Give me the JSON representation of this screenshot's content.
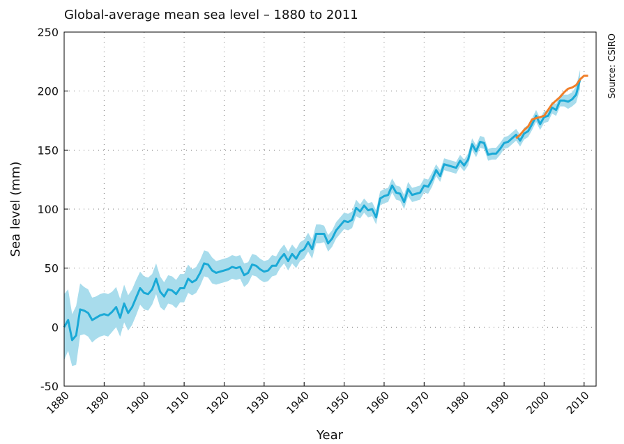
{
  "chart_data": {
    "type": "line",
    "title": "Global-average mean sea level – 1880 to 2011",
    "source": "Source: CSIRO",
    "x_label": "Year",
    "y_label": "Sea level (mm)",
    "xlim": [
      1880,
      2013
    ],
    "ylim": [
      -50,
      250
    ],
    "xticks": [
      1880,
      1890,
      1900,
      1910,
      1920,
      1930,
      1940,
      1950,
      1960,
      1970,
      1980,
      1990,
      2000,
      2010
    ],
    "yticks": [
      -50,
      0,
      50,
      100,
      150,
      200,
      250
    ],
    "grid": true,
    "series": [
      {
        "color": "#1aa9d6",
        "band_color": "#a8dcec",
        "x": [
          1880,
          1881,
          1882,
          1883,
          1884,
          1885,
          1886,
          1887,
          1888,
          1889,
          1890,
          1891,
          1892,
          1893,
          1894,
          1895,
          1896,
          1897,
          1898,
          1899,
          1900,
          1901,
          1902,
          1903,
          1904,
          1905,
          1906,
          1907,
          1908,
          1909,
          1910,
          1911,
          1912,
          1913,
          1914,
          1915,
          1916,
          1917,
          1918,
          1919,
          1920,
          1921,
          1922,
          1923,
          1924,
          1925,
          1926,
          1927,
          1928,
          1929,
          1930,
          1931,
          1932,
          1933,
          1934,
          1935,
          1936,
          1937,
          1938,
          1939,
          1940,
          1941,
          1942,
          1943,
          1944,
          1945,
          1946,
          1947,
          1948,
          1949,
          1950,
          1951,
          1952,
          1953,
          1954,
          1955,
          1956,
          1957,
          1958,
          1959,
          1960,
          1961,
          1962,
          1963,
          1964,
          1965,
          1966,
          1967,
          1968,
          1969,
          1970,
          1971,
          1972,
          1973,
          1974,
          1975,
          1976,
          1977,
          1978,
          1979,
          1980,
          1981,
          1982,
          1983,
          1984,
          1985,
          1986,
          1987,
          1988,
          1989,
          1990,
          1991,
          1992,
          1993,
          1994,
          1995,
          1996,
          1997,
          1998,
          1999,
          2000,
          2001,
          2002,
          2003,
          2004,
          2005,
          2006,
          2007,
          2008,
          2009
        ],
        "values": [
          0,
          6,
          -11,
          -7,
          15,
          14,
          12,
          6,
          8,
          10,
          11,
          10,
          13,
          17,
          8,
          20,
          12,
          17,
          25,
          33,
          29,
          28,
          32,
          41,
          30,
          26,
          32,
          31,
          28,
          33,
          33,
          41,
          38,
          40,
          46,
          54,
          53,
          48,
          46,
          47,
          48,
          49,
          51,
          50,
          51,
          44,
          46,
          53,
          52,
          49,
          47,
          48,
          52,
          52,
          58,
          62,
          56,
          62,
          58,
          64,
          66,
          72,
          66,
          79,
          79,
          79,
          71,
          75,
          82,
          86,
          90,
          89,
          91,
          101,
          98,
          103,
          99,
          100,
          93,
          109,
          111,
          112,
          120,
          114,
          113,
          106,
          117,
          112,
          113,
          114,
          120,
          119,
          125,
          133,
          128,
          138,
          137,
          136,
          135,
          141,
          137,
          142,
          155,
          149,
          157,
          156,
          146,
          147,
          147,
          151,
          156,
          157,
          160,
          163,
          158,
          164,
          166,
          172,
          179,
          172,
          178,
          179,
          186,
          184,
          192,
          192,
          191,
          193,
          197,
          210
        ],
        "error": [
          28,
          26,
          22,
          25,
          22,
          20,
          20,
          19,
          18,
          18,
          18,
          18,
          17,
          17,
          16,
          16,
          15,
          15,
          15,
          14,
          14,
          14,
          13,
          13,
          13,
          12,
          12,
          12,
          12,
          12,
          12,
          12,
          11,
          11,
          11,
          11,
          11,
          11,
          10,
          10,
          10,
          10,
          10,
          10,
          10,
          10,
          9,
          9,
          9,
          9,
          9,
          9,
          9,
          8,
          8,
          8,
          8,
          8,
          8,
          8,
          8,
          8,
          8,
          8,
          8,
          7,
          7,
          7,
          7,
          7,
          7,
          7,
          7,
          7,
          6,
          6,
          6,
          6,
          6,
          6,
          6,
          6,
          6,
          6,
          6,
          6,
          6,
          6,
          6,
          6,
          6,
          6,
          6,
          5,
          5,
          5,
          5,
          5,
          5,
          5,
          5,
          5,
          5,
          5,
          5,
          5,
          5,
          5,
          5,
          5,
          5,
          5,
          5,
          5,
          5,
          5,
          5,
          5,
          5,
          5,
          5,
          5,
          5,
          5,
          5,
          5,
          6,
          6,
          7,
          8
        ]
      },
      {
        "color": "#f07f2a",
        "x": [
          1993,
          1994,
          1995,
          1996,
          1997,
          1998,
          1999,
          2000,
          2001,
          2002,
          2003,
          2004,
          2005,
          2006,
          2007,
          2008,
          2009,
          2010,
          2011
        ],
        "values": [
          160,
          163,
          167,
          170,
          176,
          177,
          178,
          179,
          184,
          189,
          192,
          195,
          199,
          202,
          203,
          205,
          210,
          213,
          213
        ]
      }
    ]
  }
}
